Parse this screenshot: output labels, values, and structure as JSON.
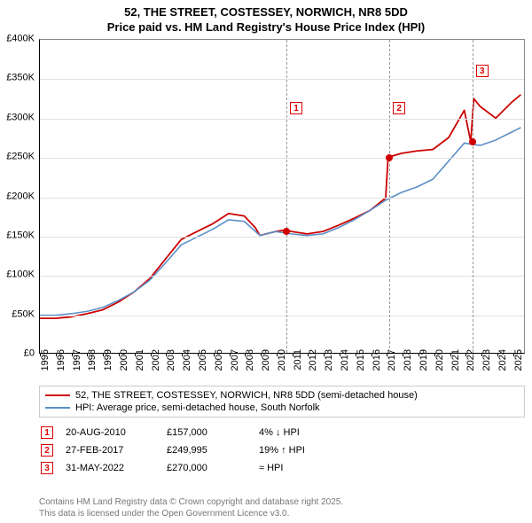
{
  "title": {
    "line1": "52, THE STREET, COSTESSEY, NORWICH, NR8 5DD",
    "line2": "Price paid vs. HM Land Registry's House Price Index (HPI)"
  },
  "chart": {
    "type": "line",
    "x_years": [
      1995,
      1996,
      1997,
      1998,
      1999,
      2000,
      2001,
      2002,
      2003,
      2004,
      2005,
      2006,
      2007,
      2008,
      2009,
      2010,
      2011,
      2012,
      2013,
      2014,
      2015,
      2016,
      2017,
      2018,
      2019,
      2020,
      2021,
      2022,
      2023,
      2024,
      2025
    ],
    "xlim": [
      1995,
      2025.8
    ],
    "ylim": [
      0,
      400000
    ],
    "ytick_step": 50000,
    "ytick_labels": [
      "£0",
      "£50K",
      "£100K",
      "£150K",
      "£200K",
      "£250K",
      "£300K",
      "£350K",
      "£400K"
    ],
    "background_color": "#ffffff",
    "grid_color": "#e0e0e0",
    "axis_color": "#000000",
    "series": [
      {
        "name": "property",
        "label": "52, THE STREET, COSTESSEY, NORWICH, NR8 5DD (semi-detached house)",
        "color": "#cc0000",
        "line_width": 1.8,
        "x": [
          1995,
          1996,
          1997,
          1998,
          1999,
          2000,
          2001,
          2002,
          2003,
          2004,
          2005,
          2006,
          2007,
          2008,
          2008.7,
          2009,
          2010,
          2010.63,
          2011,
          2012,
          2013,
          2014,
          2015,
          2016,
          2017,
          2017.15,
          2018,
          2019,
          2020,
          2021,
          2022,
          2022.41,
          2022.6,
          2023,
          2024,
          2025,
          2025.6
        ],
        "y": [
          44000,
          44000,
          46000,
          50000,
          55000,
          65000,
          78000,
          95000,
          120000,
          145000,
          155000,
          165000,
          178000,
          175000,
          160000,
          150000,
          155000,
          157000,
          155000,
          152000,
          155000,
          163000,
          172000,
          182000,
          198000,
          249995,
          255000,
          258000,
          260000,
          275000,
          310000,
          270000,
          325000,
          315000,
          300000,
          320000,
          330000
        ]
      },
      {
        "name": "hpi",
        "label": "HPI: Average price, semi-detached house, South Norfolk",
        "color": "#5b8fc7",
        "line_width": 1.6,
        "x": [
          1995,
          1996,
          1997,
          1998,
          1999,
          2000,
          2001,
          2002,
          2003,
          2004,
          2005,
          2006,
          2007,
          2008,
          2009,
          2010,
          2011,
          2012,
          2013,
          2014,
          2015,
          2016,
          2017,
          2018,
          2019,
          2020,
          2021,
          2022,
          2023,
          2024,
          2025,
          2025.6
        ],
        "y": [
          48000,
          48000,
          50000,
          53000,
          58000,
          67000,
          78000,
          93000,
          115000,
          138000,
          148000,
          158000,
          170000,
          168000,
          150000,
          155000,
          152000,
          150000,
          152000,
          160000,
          170000,
          182000,
          195000,
          205000,
          212000,
          222000,
          245000,
          268000,
          265000,
          272000,
          282000,
          288000
        ]
      }
    ],
    "markers": [
      {
        "idx": "1",
        "x": 2010.63,
        "y": 157000,
        "box_y": 70
      },
      {
        "idx": "2",
        "x": 2017.15,
        "y": 249995,
        "box_y": 70
      },
      {
        "idx": "3",
        "x": 2022.41,
        "y": 270000,
        "box_y": 28
      }
    ],
    "point_fill": "#d00000",
    "marker_line_color": "#999999"
  },
  "legend": {
    "items": [
      {
        "color": "#cc0000",
        "label": "52, THE STREET, COSTESSEY, NORWICH, NR8 5DD (semi-detached house)"
      },
      {
        "color": "#5b8fc7",
        "label": "HPI: Average price, semi-detached house, South Norfolk"
      }
    ]
  },
  "sales": [
    {
      "idx": "1",
      "date": "20-AUG-2010",
      "price": "£157,000",
      "diff": "4% ↓ HPI"
    },
    {
      "idx": "2",
      "date": "27-FEB-2017",
      "price": "£249,995",
      "diff": "19% ↑ HPI"
    },
    {
      "idx": "3",
      "date": "31-MAY-2022",
      "price": "£270,000",
      "diff": "≈ HPI"
    }
  ],
  "attribution": {
    "line1": "Contains HM Land Registry data © Crown copyright and database right 2025.",
    "line2": "This data is licensed under the Open Government Licence v3.0."
  }
}
